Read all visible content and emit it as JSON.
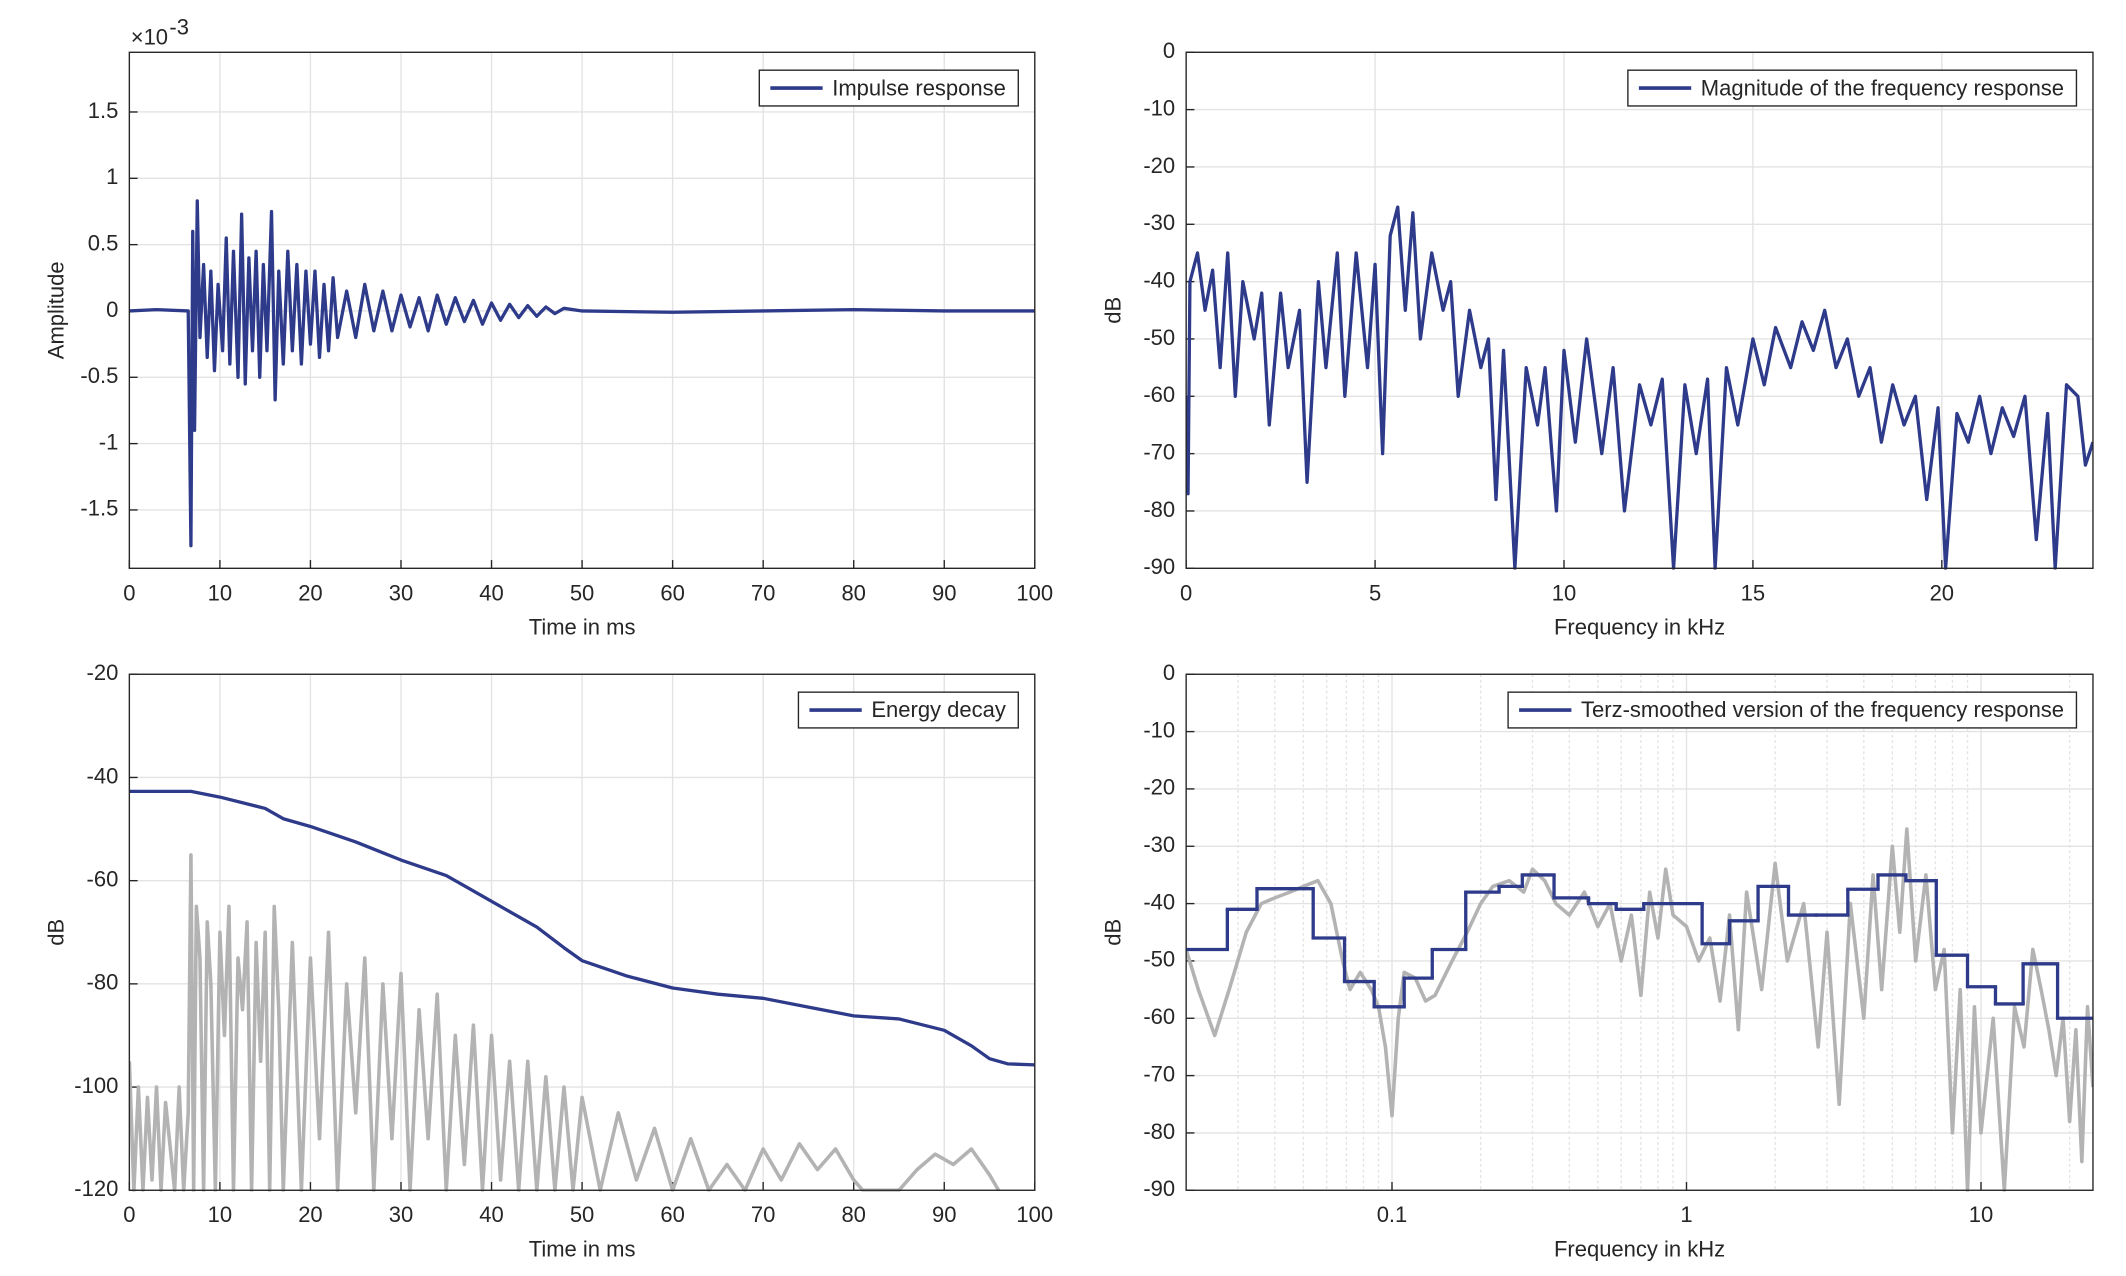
{
  "chart_data": [
    {
      "type": "line",
      "x_label": "Time in ms",
      "y_label": "Amplitude",
      "y_multiplier": "×10",
      "y_multiplier_exponent": "-3",
      "xlim": [
        0,
        100
      ],
      "ylim": [
        -1.94,
        1.95
      ],
      "xticks": [
        0,
        10,
        20,
        30,
        40,
        50,
        60,
        70,
        80,
        90,
        100
      ],
      "yticks": [
        -1.5,
        -1,
        -0.5,
        0,
        0.5,
        1,
        1.5
      ],
      "grid": true,
      "legend": "northeast",
      "series": [
        {
          "name": "Impulse response",
          "color": "#2e3a8a",
          "x": [
            0,
            3,
            6.5,
            6.8,
            7.0,
            7.2,
            7.5,
            7.8,
            8.2,
            8.6,
            9,
            9.4,
            9.8,
            10.3,
            10.7,
            11.1,
            11.5,
            12,
            12.4,
            12.8,
            13.2,
            13.6,
            14,
            14.4,
            14.8,
            15.2,
            15.7,
            16.1,
            16.5,
            17,
            17.5,
            18,
            18.5,
            19,
            19.5,
            20,
            20.5,
            21,
            21.5,
            22,
            22.5,
            23,
            24,
            25,
            26,
            27,
            28,
            29,
            30,
            31,
            32,
            33,
            34,
            35,
            36,
            37,
            38,
            39,
            40,
            41,
            42,
            43,
            44,
            45,
            46,
            47,
            48,
            50,
            60,
            70,
            80,
            90,
            100
          ],
          "values": [
            0,
            0.01,
            0,
            -1.77,
            0.6,
            -0.9,
            0.83,
            -0.2,
            0.35,
            -0.35,
            0.3,
            -0.45,
            0.2,
            -0.3,
            0.55,
            -0.4,
            0.45,
            -0.5,
            0.73,
            -0.55,
            0.4,
            -0.3,
            0.45,
            -0.5,
            0.35,
            -0.3,
            0.75,
            -0.67,
            0.3,
            -0.4,
            0.45,
            -0.3,
            0.35,
            -0.4,
            0.3,
            -0.25,
            0.3,
            -0.35,
            0.2,
            -0.3,
            0.25,
            -0.2,
            0.15,
            -0.2,
            0.2,
            -0.15,
            0.15,
            -0.15,
            0.12,
            -0.12,
            0.1,
            -0.15,
            0.12,
            -0.1,
            0.1,
            -0.08,
            0.08,
            -0.1,
            0.06,
            -0.07,
            0.05,
            -0.05,
            0.04,
            -0.04,
            0.03,
            -0.02,
            0.02,
            0,
            -0.01,
            0,
            0.01,
            0,
            0
          ]
        }
      ]
    },
    {
      "type": "line",
      "x_label": "Frequency in kHz",
      "y_label": "dB",
      "xlim": [
        0,
        24
      ],
      "ylim": [
        -90,
        0
      ],
      "xticks": [
        0,
        5,
        10,
        15,
        20
      ],
      "yticks": [
        -90,
        -80,
        -70,
        -60,
        -50,
        -40,
        -30,
        -20,
        -10,
        0
      ],
      "grid": true,
      "legend": "northeast",
      "series": [
        {
          "name": "Magnitude of the frequency response",
          "color": "#2e3a8a",
          "x": [
            0,
            0.05,
            0.1,
            0.3,
            0.5,
            0.7,
            0.9,
            1.1,
            1.3,
            1.5,
            1.8,
            2,
            2.2,
            2.5,
            2.7,
            3,
            3.2,
            3.5,
            3.7,
            4,
            4.2,
            4.5,
            4.8,
            5,
            5.2,
            5.4,
            5.6,
            5.8,
            6,
            6.2,
            6.5,
            6.8,
            7,
            7.2,
            7.5,
            7.8,
            8,
            8.2,
            8.4,
            8.7,
            9,
            9.3,
            9.5,
            9.8,
            10,
            10.3,
            10.6,
            11,
            11.3,
            11.6,
            12,
            12.3,
            12.6,
            12.9,
            13.2,
            13.5,
            13.8,
            14,
            14.3,
            14.6,
            15,
            15.3,
            15.6,
            16,
            16.3,
            16.6,
            16.9,
            17.2,
            17.5,
            17.8,
            18.1,
            18.4,
            18.7,
            19,
            19.3,
            19.6,
            19.9,
            20.1,
            20.4,
            20.7,
            21,
            21.3,
            21.6,
            21.9,
            22.2,
            22.5,
            22.8,
            23,
            23.3,
            23.6,
            23.8,
            24
          ],
          "values": [
            -60,
            -77,
            -40,
            -35,
            -45,
            -38,
            -55,
            -35,
            -60,
            -40,
            -50,
            -42,
            -65,
            -42,
            -55,
            -45,
            -75,
            -40,
            -55,
            -35,
            -60,
            -35,
            -55,
            -37,
            -70,
            -32,
            -27,
            -45,
            -28,
            -50,
            -35,
            -45,
            -40,
            -60,
            -45,
            -55,
            -50,
            -78,
            -52,
            -90,
            -55,
            -65,
            -55,
            -80,
            -52,
            -68,
            -50,
            -70,
            -55,
            -80,
            -58,
            -65,
            -57,
            -90,
            -58,
            -70,
            -57,
            -90,
            -55,
            -65,
            -50,
            -58,
            -48,
            -55,
            -47,
            -52,
            -45,
            -55,
            -50,
            -60,
            -55,
            -68,
            -58,
            -65,
            -60,
            -78,
            -62,
            -90,
            -63,
            -68,
            -60,
            -70,
            -62,
            -67,
            -60,
            -85,
            -63,
            -90,
            -58,
            -60,
            -72,
            -68
          ]
        }
      ]
    },
    {
      "type": "line",
      "x_label": "Time in ms",
      "y_label": "dB",
      "xlim": [
        0,
        100
      ],
      "ylim": [
        -120,
        -20
      ],
      "xticks": [
        0,
        10,
        20,
        30,
        40,
        50,
        60,
        70,
        80,
        90,
        100
      ],
      "yticks": [
        -120,
        -100,
        -80,
        -60,
        -40,
        -20
      ],
      "grid": true,
      "legend": "northeast",
      "series": [
        {
          "color": "#b3b3b3",
          "x": [
            0,
            0.5,
            1,
            1.5,
            2,
            2.5,
            3,
            3.5,
            4,
            5,
            5.5,
            6,
            6.5,
            6.8,
            7.1,
            7.4,
            7.8,
            8.2,
            8.6,
            9,
            9.5,
            10,
            10.5,
            11,
            11.5,
            12,
            12.5,
            13,
            13.5,
            14,
            14.5,
            15,
            15.5,
            16,
            16.5,
            17,
            18,
            19,
            20,
            21,
            22,
            23,
            24,
            25,
            26,
            27,
            28,
            29,
            30,
            31,
            32,
            33,
            34,
            35,
            36,
            37,
            38,
            39,
            40,
            41,
            42,
            43,
            44,
            45,
            46,
            47,
            48,
            49,
            50,
            52,
            54,
            56,
            58,
            60,
            62,
            64,
            66,
            68,
            70,
            72,
            74,
            76,
            78,
            80,
            81,
            85,
            87,
            89,
            91,
            93,
            95,
            96
          ],
          "values": [
            -95,
            -120,
            -100,
            -120,
            -102,
            -118,
            -100,
            -120,
            -103,
            -120,
            -100,
            -120,
            -105,
            -55,
            -120,
            -65,
            -75,
            -120,
            -68,
            -80,
            -120,
            -70,
            -90,
            -65,
            -120,
            -75,
            -85,
            -68,
            -120,
            -72,
            -95,
            -70,
            -120,
            -65,
            -85,
            -120,
            -72,
            -120,
            -75,
            -110,
            -70,
            -120,
            -80,
            -105,
            -75,
            -120,
            -80,
            -110,
            -78,
            -120,
            -85,
            -110,
            -82,
            -120,
            -90,
            -115,
            -88,
            -120,
            -90,
            -118,
            -95,
            -120,
            -95,
            -120,
            -98,
            -120,
            -100,
            -120,
            -102,
            -120,
            -105,
            -118,
            -108,
            -120,
            -110,
            -120,
            -115,
            -120,
            -112,
            -118,
            -111,
            -116,
            -112,
            -118,
            -120,
            -120,
            -116,
            -113,
            -115,
            -112,
            -117,
            -120
          ]
        },
        {
          "name": "Energy decay",
          "color": "#2e3a8a",
          "x": [
            0,
            6.8,
            10,
            15,
            17,
            20,
            25,
            30,
            35,
            40,
            45,
            48,
            50,
            55,
            60,
            65,
            70,
            75,
            80,
            85,
            90,
            93,
            95,
            97,
            100
          ],
          "values": [
            -42.7,
            -42.7,
            -43.8,
            -46,
            -48,
            -49.5,
            -52.5,
            -56,
            -59,
            -64,
            -69,
            -73,
            -75.5,
            -78.5,
            -80.8,
            -82,
            -82.8,
            -84.5,
            -86.2,
            -86.8,
            -89,
            -92,
            -94.5,
            -95.5,
            -95.7
          ]
        }
      ]
    },
    {
      "type": "line",
      "x_label": "Frequency in kHz",
      "y_label": "dB",
      "xscale": "log",
      "xlim": [
        0.02,
        24
      ],
      "ylim": [
        -90,
        0
      ],
      "xticks": [
        0.1,
        1,
        10
      ],
      "xminorticks": [
        0.03,
        0.04,
        0.05,
        0.06,
        0.07,
        0.08,
        0.09,
        0.2,
        0.3,
        0.4,
        0.5,
        0.6,
        0.7,
        0.8,
        0.9,
        2,
        3,
        4,
        5,
        6,
        7,
        8,
        9,
        20
      ],
      "yticks": [
        -90,
        -80,
        -70,
        -60,
        -50,
        -40,
        -30,
        -20,
        -10,
        0
      ],
      "grid": true,
      "legend": "northeast",
      "series": [
        {
          "color": "#b3b3b3",
          "x": [
            0.02,
            0.022,
            0.025,
            0.028,
            0.032,
            0.036,
            0.04,
            0.045,
            0.05,
            0.056,
            0.062,
            0.068,
            0.072,
            0.078,
            0.085,
            0.09,
            0.095,
            0.1,
            0.105,
            0.11,
            0.12,
            0.13,
            0.14,
            0.16,
            0.18,
            0.2,
            0.22,
            0.25,
            0.28,
            0.3,
            0.33,
            0.36,
            0.4,
            0.45,
            0.5,
            0.55,
            0.6,
            0.65,
            0.7,
            0.75,
            0.8,
            0.85,
            0.9,
            1,
            1.1,
            1.2,
            1.3,
            1.4,
            1.5,
            1.6,
            1.8,
            2,
            2.2,
            2.5,
            2.8,
            3,
            3.3,
            3.6,
            4,
            4.3,
            4.6,
            5,
            5.3,
            5.6,
            6,
            6.5,
            7,
            7.5,
            8,
            8.5,
            9,
            9.5,
            10,
            11,
            12,
            13,
            14,
            15,
            16,
            17,
            18,
            19,
            20,
            21,
            22,
            23,
            24
          ],
          "values": [
            -48,
            -55,
            -63,
            -55,
            -45,
            -40,
            -39,
            -38,
            -37,
            -36,
            -40,
            -50,
            -55,
            -52,
            -55,
            -58,
            -65,
            -77,
            -60,
            -52,
            -53,
            -57,
            -56,
            -50,
            -45,
            -40,
            -37,
            -36,
            -38,
            -34,
            -36,
            -40,
            -42,
            -38,
            -44,
            -40,
            -50,
            -42,
            -56,
            -38,
            -46,
            -34,
            -42,
            -44,
            -50,
            -46,
            -57,
            -42,
            -62,
            -38,
            -55,
            -33,
            -50,
            -40,
            -65,
            -45,
            -75,
            -40,
            -60,
            -35,
            -55,
            -30,
            -45,
            -27,
            -50,
            -35,
            -55,
            -48,
            -80,
            -55,
            -90,
            -58,
            -80,
            -60,
            -90,
            -58,
            -65,
            -48,
            -55,
            -62,
            -70,
            -60,
            -78,
            -62,
            -85,
            -58,
            -72
          ]
        },
        {
          "name": "Terz-smoothed version of the frequency response",
          "color": "#2e3a8a",
          "style": "step",
          "edges": [
            0.02,
            0.0276,
            0.0348,
            0.054,
            0.069,
            0.087,
            0.11,
            0.137,
            0.178,
            0.231,
            0.277,
            0.355,
            0.465,
            0.577,
            0.716,
            1.13,
            1.4,
            1.75,
            2.22,
            2.76,
            3.53,
            4.47,
            5.56,
            7.05,
            9.0,
            11.2,
            13.9,
            18.2,
            24
          ],
          "values": [
            -48,
            -41,
            -37.4,
            -46,
            -53.6,
            -58,
            -53,
            -48,
            -38,
            -37,
            -35,
            -39,
            -40,
            -41,
            -40,
            -47,
            -43,
            -37,
            -42,
            -42,
            -37.5,
            -35,
            -36,
            -49,
            -54.5,
            -57.5,
            -50.5,
            -60
          ]
        }
      ]
    }
  ]
}
